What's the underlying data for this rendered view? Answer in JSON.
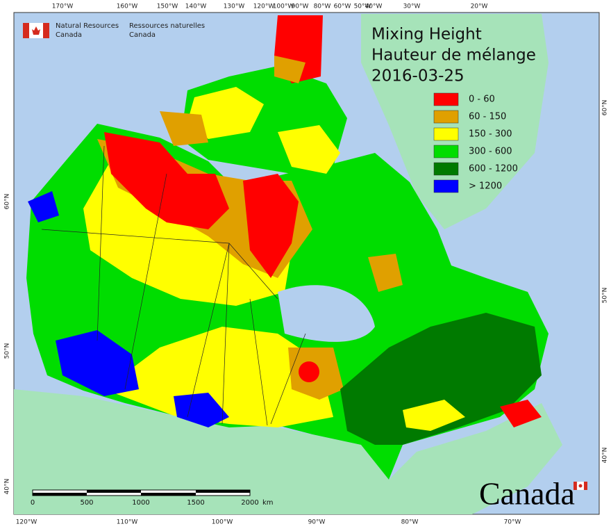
{
  "header": {
    "agency_en": [
      "Natural Resources",
      "Canada"
    ],
    "agency_fr": [
      "Ressources naturelles",
      "Canada"
    ]
  },
  "title": [
    "Mixing Height",
    "Hauteur de mélange",
    "2016-03-25"
  ],
  "legend": [
    {
      "label": "0 - 60",
      "color": "#ff0000"
    },
    {
      "label": "60 - 150",
      "color": "#e0a000"
    },
    {
      "label": "150 - 300",
      "color": "#ffff00"
    },
    {
      "label": "300 - 600",
      "color": "#00dd00"
    },
    {
      "label": "600 - 1200",
      "color": "#007a00"
    },
    {
      "label": "> 1200",
      "color": "#0000ff"
    }
  ],
  "graticule": {
    "top": [
      "170°W",
      "160°W",
      "150°W",
      "140°W",
      "130°W",
      "120°W",
      "100°W",
      "90°W",
      "80°W",
      "60°W",
      "50°W",
      "40°W",
      "30°W",
      "20°W"
    ],
    "bottom": [
      "120°W",
      "110°W",
      "100°W",
      "90°W",
      "80°W",
      "70°W"
    ],
    "left": [
      "60°N",
      "50°N",
      "40°N"
    ],
    "right": [
      "60°N",
      "50°N",
      "40°N"
    ]
  },
  "scale_bar": {
    "labels": [
      "0",
      "500",
      "1000",
      "1500",
      "2000"
    ],
    "unit": "km"
  },
  "wordmark": "Canada"
}
